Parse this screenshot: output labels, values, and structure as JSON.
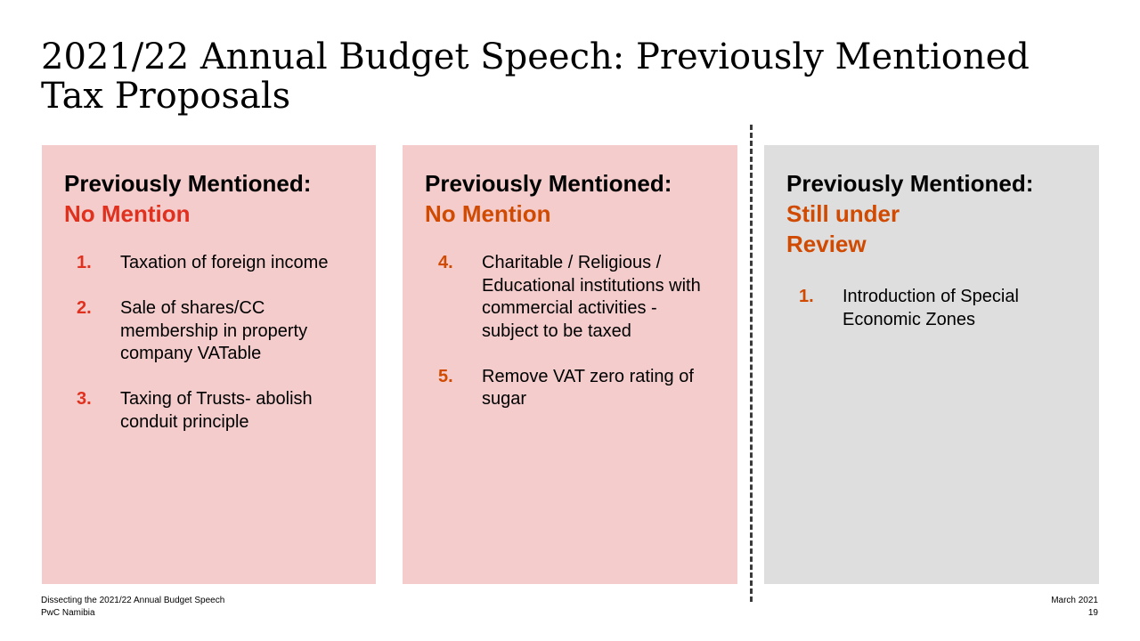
{
  "slide": {
    "title": "2021/22 Annual Budget Speech: Previously Mentioned Tax Proposals"
  },
  "columns": [
    {
      "heading": "Previously Mentioned:",
      "status": "No Mention",
      "status_color": "#e0301e",
      "background": "#f4cccc",
      "items": [
        {
          "num": "1.",
          "text": "Taxation of foreign income"
        },
        {
          "num": "2.",
          "text": "Sale of shares/CC membership in property company VATable"
        },
        {
          "num": "3.",
          "text": "Taxing of Trusts- abolish conduit principle"
        }
      ]
    },
    {
      "heading": "Previously Mentioned:",
      "status": "No Mention",
      "status_color": "#d04a02",
      "background": "#f4cccc",
      "items": [
        {
          "num": "4.",
          "text": "Charitable / Religious / Educational institutions with commercial activities - subject to be taxed"
        },
        {
          "num": "5.",
          "text": "Remove VAT zero rating of sugar"
        }
      ]
    },
    {
      "heading": "Previously Mentioned:",
      "status": "Still under Review",
      "status_color": "#d04a02",
      "background": "#dedede",
      "items": [
        {
          "num": "1.",
          "text": "Introduction of Special Economic Zones"
        }
      ]
    }
  ],
  "footer": {
    "document": "Dissecting the 2021/22 Annual Budget Speech",
    "organization": "PwC Namibia",
    "date": "March 2021",
    "page": "19"
  }
}
